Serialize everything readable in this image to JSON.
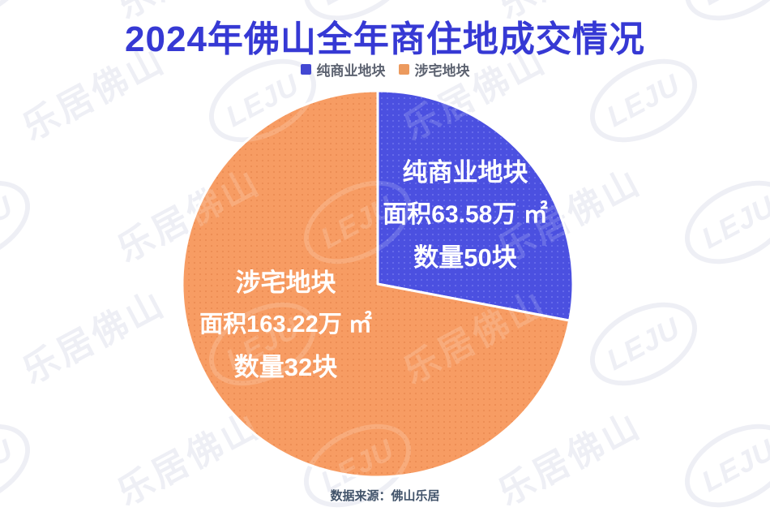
{
  "title": "2024年佛山全年商住地成交情况",
  "legend": {
    "items": [
      {
        "label": "纯商业地块",
        "color": "#4348d2"
      },
      {
        "label": "涉宅地块",
        "color": "#ec9a5e"
      }
    ]
  },
  "chart_data": {
    "type": "pie",
    "title": "2024年佛山全年商住地成交情况",
    "value_basis": "面积(万㎡)",
    "start_angle_deg": 0,
    "direction": "clockwise",
    "legend_position": "top",
    "slices": [
      {
        "name": "纯商业地块",
        "area_wan_sqm": 63.58,
        "count": 50,
        "area_label": "面积63.58万 ㎡",
        "count_label": "数量50块",
        "percent_of_pie": 28.0,
        "color": "#4b50e0",
        "texture_dot_color": "#6d72ee",
        "label_text_color": "#ffffff"
      },
      {
        "name": "涉宅地块",
        "area_wan_sqm": 163.22,
        "count": 32,
        "area_label": "面积163.22万 ㎡",
        "count_label": "数量32块",
        "percent_of_pie": 72.0,
        "color": "#f79c63",
        "texture_dot_color": "#ea8a50",
        "label_text_color": "#ffffff"
      }
    ]
  },
  "source": "数据来源：佛山乐居",
  "watermark": {
    "logo_text": "LEJU",
    "text": "乐居佛山"
  },
  "colors": {
    "title": "#3639d4",
    "legend_text": "#5c6270",
    "source_text": "#41536a",
    "slice_separator": "#ffffff",
    "background": "#ffffff"
  }
}
